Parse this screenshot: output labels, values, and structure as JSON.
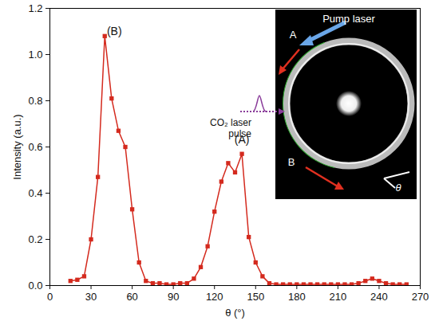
{
  "chart_data": {
    "type": "line",
    "x_label": "θ (°)",
    "y_label": "Intensity (a.u.)",
    "x": [
      15,
      20,
      25,
      30,
      35,
      40,
      45,
      50,
      55,
      60,
      65,
      70,
      75,
      80,
      85,
      90,
      95,
      100,
      105,
      110,
      115,
      120,
      125,
      130,
      135,
      140,
      145,
      150,
      155,
      160,
      165,
      170,
      175,
      180,
      185,
      190,
      195,
      200,
      205,
      210,
      215,
      220,
      225,
      230,
      235,
      240,
      245,
      250,
      255,
      260
    ],
    "values": [
      0.02,
      0.025,
      0.04,
      0.2,
      0.47,
      1.08,
      0.81,
      0.67,
      0.6,
      0.33,
      0.1,
      0.02,
      0.01,
      0.01,
      0.005,
      0.005,
      0.01,
      0.01,
      0.03,
      0.08,
      0.17,
      0.32,
      0.45,
      0.53,
      0.49,
      0.57,
      0.21,
      0.1,
      0.04,
      0.01,
      0.005,
      0.005,
      0.005,
      0.005,
      0.005,
      0.005,
      0.005,
      0.005,
      0.005,
      0.005,
      0.005,
      0.005,
      0.01,
      0.02,
      0.03,
      0.02,
      0.01,
      0.005,
      0.005,
      0.005
    ],
    "color": "#d42a1e",
    "marker": "square",
    "line_style": "solid",
    "xlim": [
      0,
      270
    ],
    "xticks": [
      0,
      30,
      60,
      90,
      120,
      150,
      180,
      210,
      240,
      270
    ],
    "ylim": [
      0,
      1.2
    ],
    "yticks": [
      {
        "value": 0,
        "label": "0.0"
      },
      {
        "value": 0.2,
        "label": "0.2"
      },
      {
        "value": 0.4,
        "label": "0.4"
      },
      {
        "value": 0.6,
        "label": "0.6"
      },
      {
        "value": 0.8,
        "label": "0.8"
      },
      {
        "value": 1.0,
        "label": "1.0"
      },
      {
        "value": 1.2,
        "label": "1.2"
      }
    ],
    "grid": false,
    "annotations": [
      {
        "text": "(B)",
        "x": 47,
        "y": 1.1
      },
      {
        "text": "(A)",
        "x": 140,
        "y": 0.63
      }
    ],
    "inset_labels": [
      "Pump laser",
      "A",
      "B",
      "CO₂ laser pulse",
      "θ"
    ]
  }
}
